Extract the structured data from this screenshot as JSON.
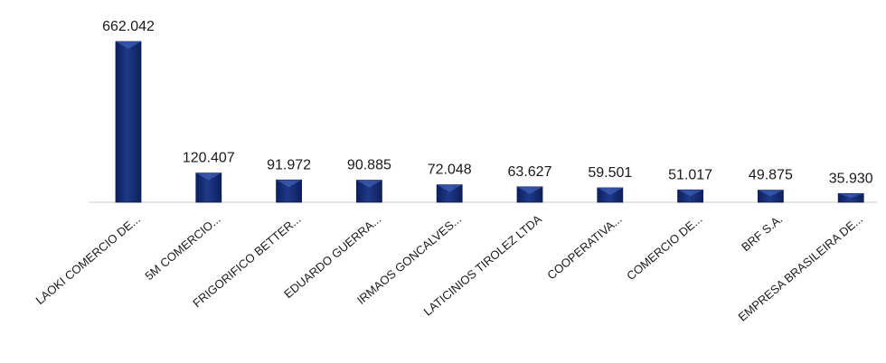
{
  "chart_data": {
    "type": "bar",
    "title": "",
    "xlabel": "",
    "ylabel": "",
    "ylim": [
      0,
      662.042
    ],
    "grid": false,
    "legend": "none",
    "categories": [
      "LAOKI COMERCIO DE...",
      "5M COMERCIO...",
      "FRIGORIFICO BETTER...",
      "EDUARDO GUERRA...",
      "IRMAOS GONCALVES...",
      "LATICINIOS TIROLEZ LTDA",
      "COOPERATIVA...",
      "COMERCIO DE...",
      "BRF S.A.",
      "EMPRESA BRASILEIRA DE..."
    ],
    "values": [
      662.042,
      120.407,
      91.972,
      90.885,
      72.048,
      63.627,
      59.501,
      51.017,
      49.875,
      35.93
    ],
    "value_labels": [
      "662.042",
      "120.407",
      "91.972",
      "90.885",
      "72.048",
      "63.627",
      "59.501",
      "51.017",
      "49.875",
      "35.930"
    ],
    "colors": {
      "bar_dark": "#0d1f5c",
      "bar_mid": "#1f3a8a",
      "bar_light": "#4a6cc4",
      "baseline": "#c8c8c8"
    }
  }
}
